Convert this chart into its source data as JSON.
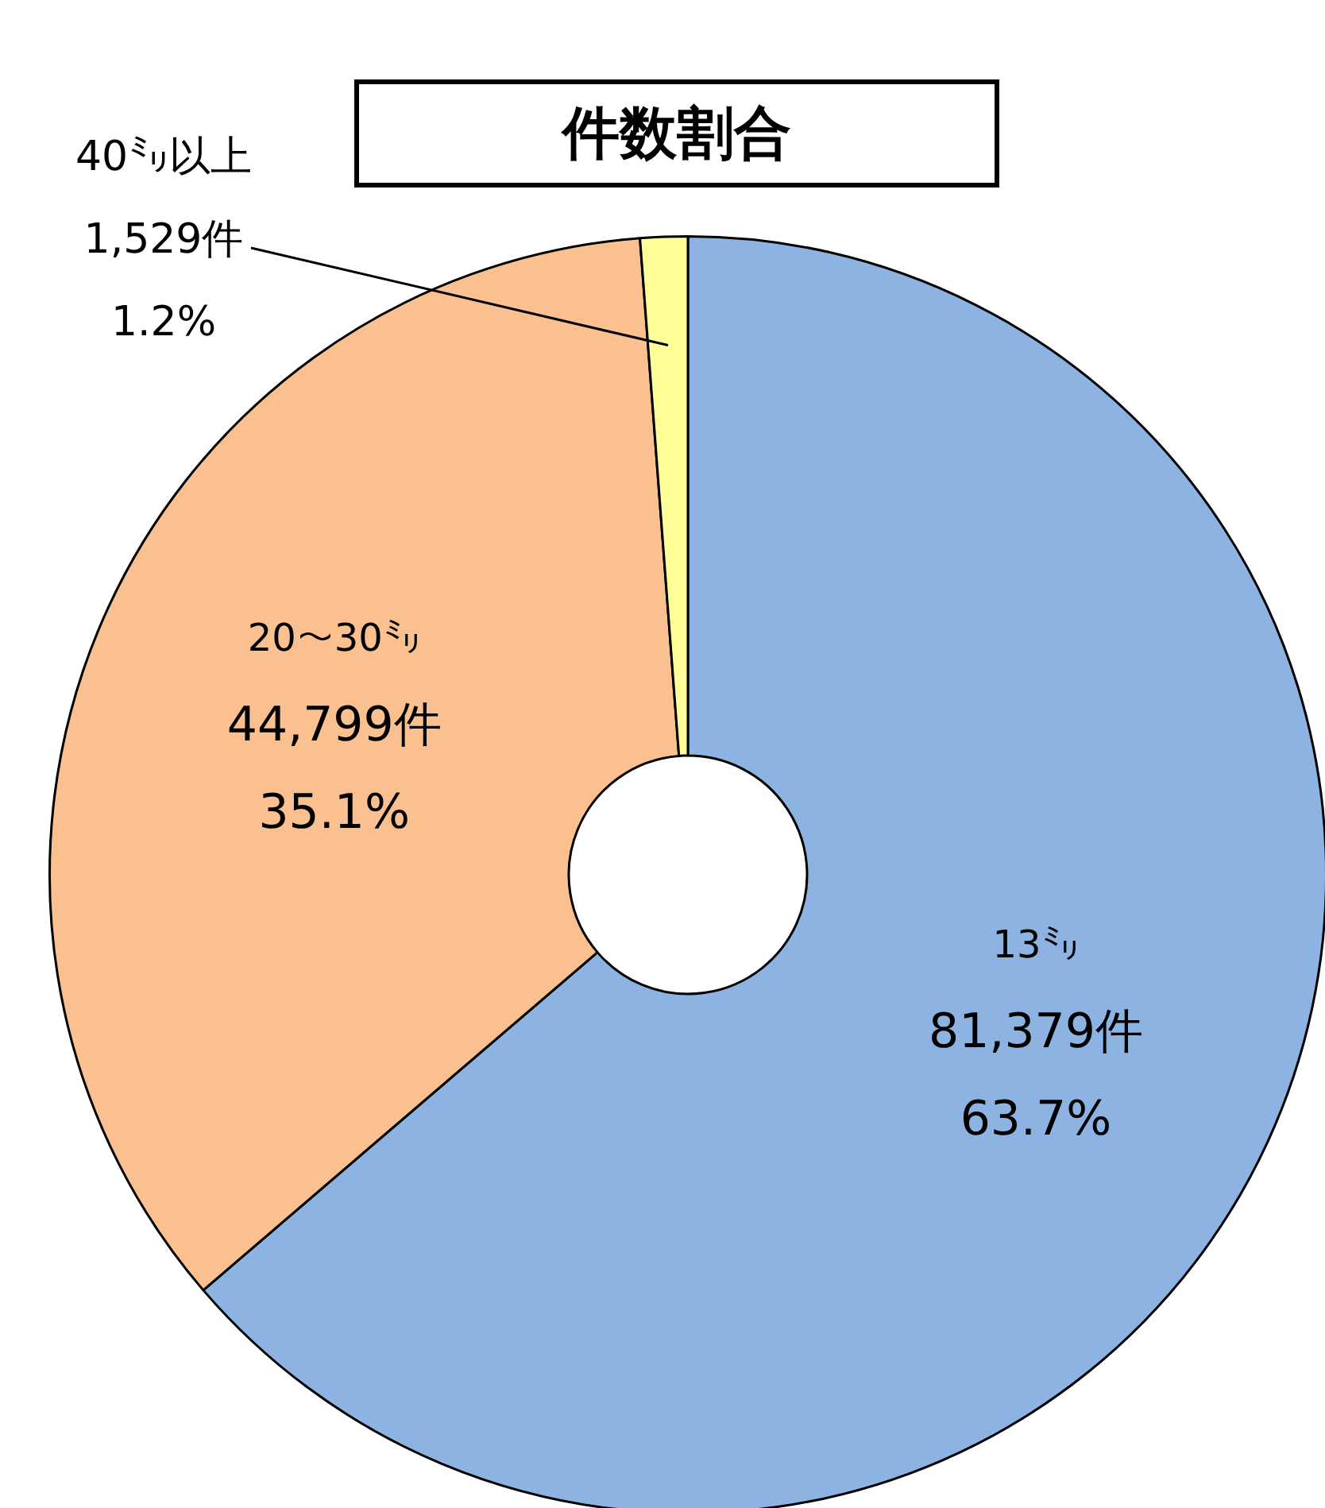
{
  "chart_data": {
    "type": "donut",
    "title": "件数割合",
    "categories": [
      "13㍉",
      "20～30㍉",
      "40㍉以上"
    ],
    "values": [
      81379,
      44799,
      1529
    ],
    "colors": [
      "#8db3e2",
      "#fac090",
      "#ffff99"
    ],
    "value_labels": [
      "81,379件\n63.7%",
      "44,799件\n35.1%",
      "1,529件\n1.2%"
    ],
    "legend": false
  }
}
